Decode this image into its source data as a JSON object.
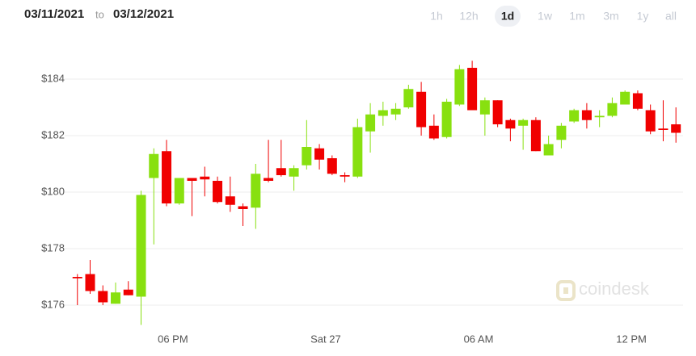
{
  "header": {
    "from": "03/11/2021",
    "to_word": "to",
    "to": "03/12/2021",
    "ranges": [
      {
        "label": "1h",
        "active": false
      },
      {
        "label": "12h",
        "active": false
      },
      {
        "label": "1d",
        "active": true
      },
      {
        "label": "1w",
        "active": false
      },
      {
        "label": "1m",
        "active": false
      },
      {
        "label": "3m",
        "active": false
      },
      {
        "label": "1y",
        "active": false
      },
      {
        "label": "all",
        "active": false
      }
    ]
  },
  "chart_data": {
    "type": "candlestick",
    "watermark": "coindesk",
    "up_color": "#88e00f",
    "down_color": "#f00000",
    "grid": true,
    "x": [
      14.25,
      14.75,
      15.25,
      15.75,
      16.25,
      16.75,
      17.25,
      17.75,
      18.25,
      18.75,
      19.25,
      19.75,
      20.25,
      20.75,
      21.25,
      21.75,
      22.25,
      22.75,
      23.25,
      23.75,
      24.25,
      24.75,
      25.25,
      25.75,
      26.25,
      26.75,
      27.25,
      27.75,
      28.25,
      28.75,
      29.25,
      29.75,
      30.25,
      30.75,
      31.25,
      31.75,
      32.25,
      32.75,
      33.25,
      33.75,
      34.25,
      34.75,
      35.25,
      35.75,
      36.25,
      36.75,
      37.25,
      37.75
    ],
    "open": [
      177.0,
      177.1,
      176.5,
      176.05,
      176.55,
      176.3,
      180.5,
      181.45,
      179.6,
      180.5,
      180.55,
      180.4,
      179.85,
      179.5,
      179.45,
      180.5,
      180.85,
      180.55,
      180.95,
      181.55,
      181.2,
      180.6,
      180.55,
      182.15,
      182.7,
      182.75,
      183.0,
      183.55,
      182.35,
      181.95,
      183.1,
      184.4,
      182.75,
      183.25,
      182.55,
      182.35,
      182.55,
      181.3,
      181.85,
      182.5,
      182.9,
      182.65,
      182.7,
      183.1,
      183.5,
      182.9,
      182.25,
      182.4
    ],
    "high": [
      177.1,
      177.6,
      176.7,
      176.8,
      176.85,
      180.05,
      181.55,
      181.85,
      180.5,
      180.5,
      180.9,
      180.55,
      180.55,
      179.6,
      181.0,
      181.85,
      181.85,
      180.95,
      182.55,
      181.7,
      181.3,
      180.7,
      182.6,
      183.15,
      183.2,
      183.15,
      183.8,
      183.9,
      182.75,
      183.3,
      184.5,
      184.65,
      183.35,
      183.25,
      182.6,
      182.6,
      182.65,
      182.0,
      182.45,
      182.95,
      183.15,
      182.9,
      183.35,
      183.6,
      183.6,
      183.1,
      183.25,
      183.0
    ],
    "low": [
      176.0,
      176.4,
      176.0,
      176.05,
      176.35,
      175.3,
      178.15,
      179.5,
      179.55,
      179.15,
      179.85,
      179.6,
      179.3,
      178.8,
      178.7,
      180.35,
      180.55,
      180.05,
      180.8,
      180.8,
      180.6,
      180.35,
      180.5,
      181.4,
      182.35,
      182.55,
      182.95,
      182.0,
      181.85,
      181.9,
      183.05,
      182.9,
      182.0,
      182.3,
      181.8,
      181.5,
      181.45,
      181.3,
      181.55,
      182.45,
      182.25,
      182.3,
      182.65,
      183.1,
      182.9,
      182.05,
      181.8,
      181.75
    ],
    "close": [
      176.95,
      176.5,
      176.1,
      176.45,
      176.35,
      179.9,
      181.35,
      179.6,
      180.5,
      180.4,
      180.45,
      179.65,
      179.55,
      179.4,
      180.65,
      180.4,
      180.6,
      180.85,
      181.6,
      181.15,
      180.65,
      180.55,
      182.3,
      182.75,
      182.9,
      182.95,
      183.65,
      182.3,
      181.9,
      183.2,
      184.35,
      182.9,
      183.25,
      182.4,
      182.25,
      182.55,
      181.45,
      181.7,
      182.35,
      182.9,
      182.55,
      182.7,
      183.15,
      183.55,
      182.95,
      182.15,
      182.2,
      182.1
    ],
    "xlim": [
      13.75,
      38.03
    ],
    "xticks": [
      {
        "value": 18,
        "label": "06 PM"
      },
      {
        "value": 24,
        "label": "Sat 27"
      },
      {
        "value": 30,
        "label": "06 AM"
      },
      {
        "value": 36,
        "label": "12 PM"
      }
    ],
    "ylim": [
      175.2,
      185.6
    ],
    "yticks": [
      {
        "value": 176,
        "label": "$176"
      },
      {
        "value": 178,
        "label": "$178"
      },
      {
        "value": 180,
        "label": "$180"
      },
      {
        "value": 182,
        "label": "$182"
      },
      {
        "value": 184,
        "label": "$184"
      }
    ]
  }
}
